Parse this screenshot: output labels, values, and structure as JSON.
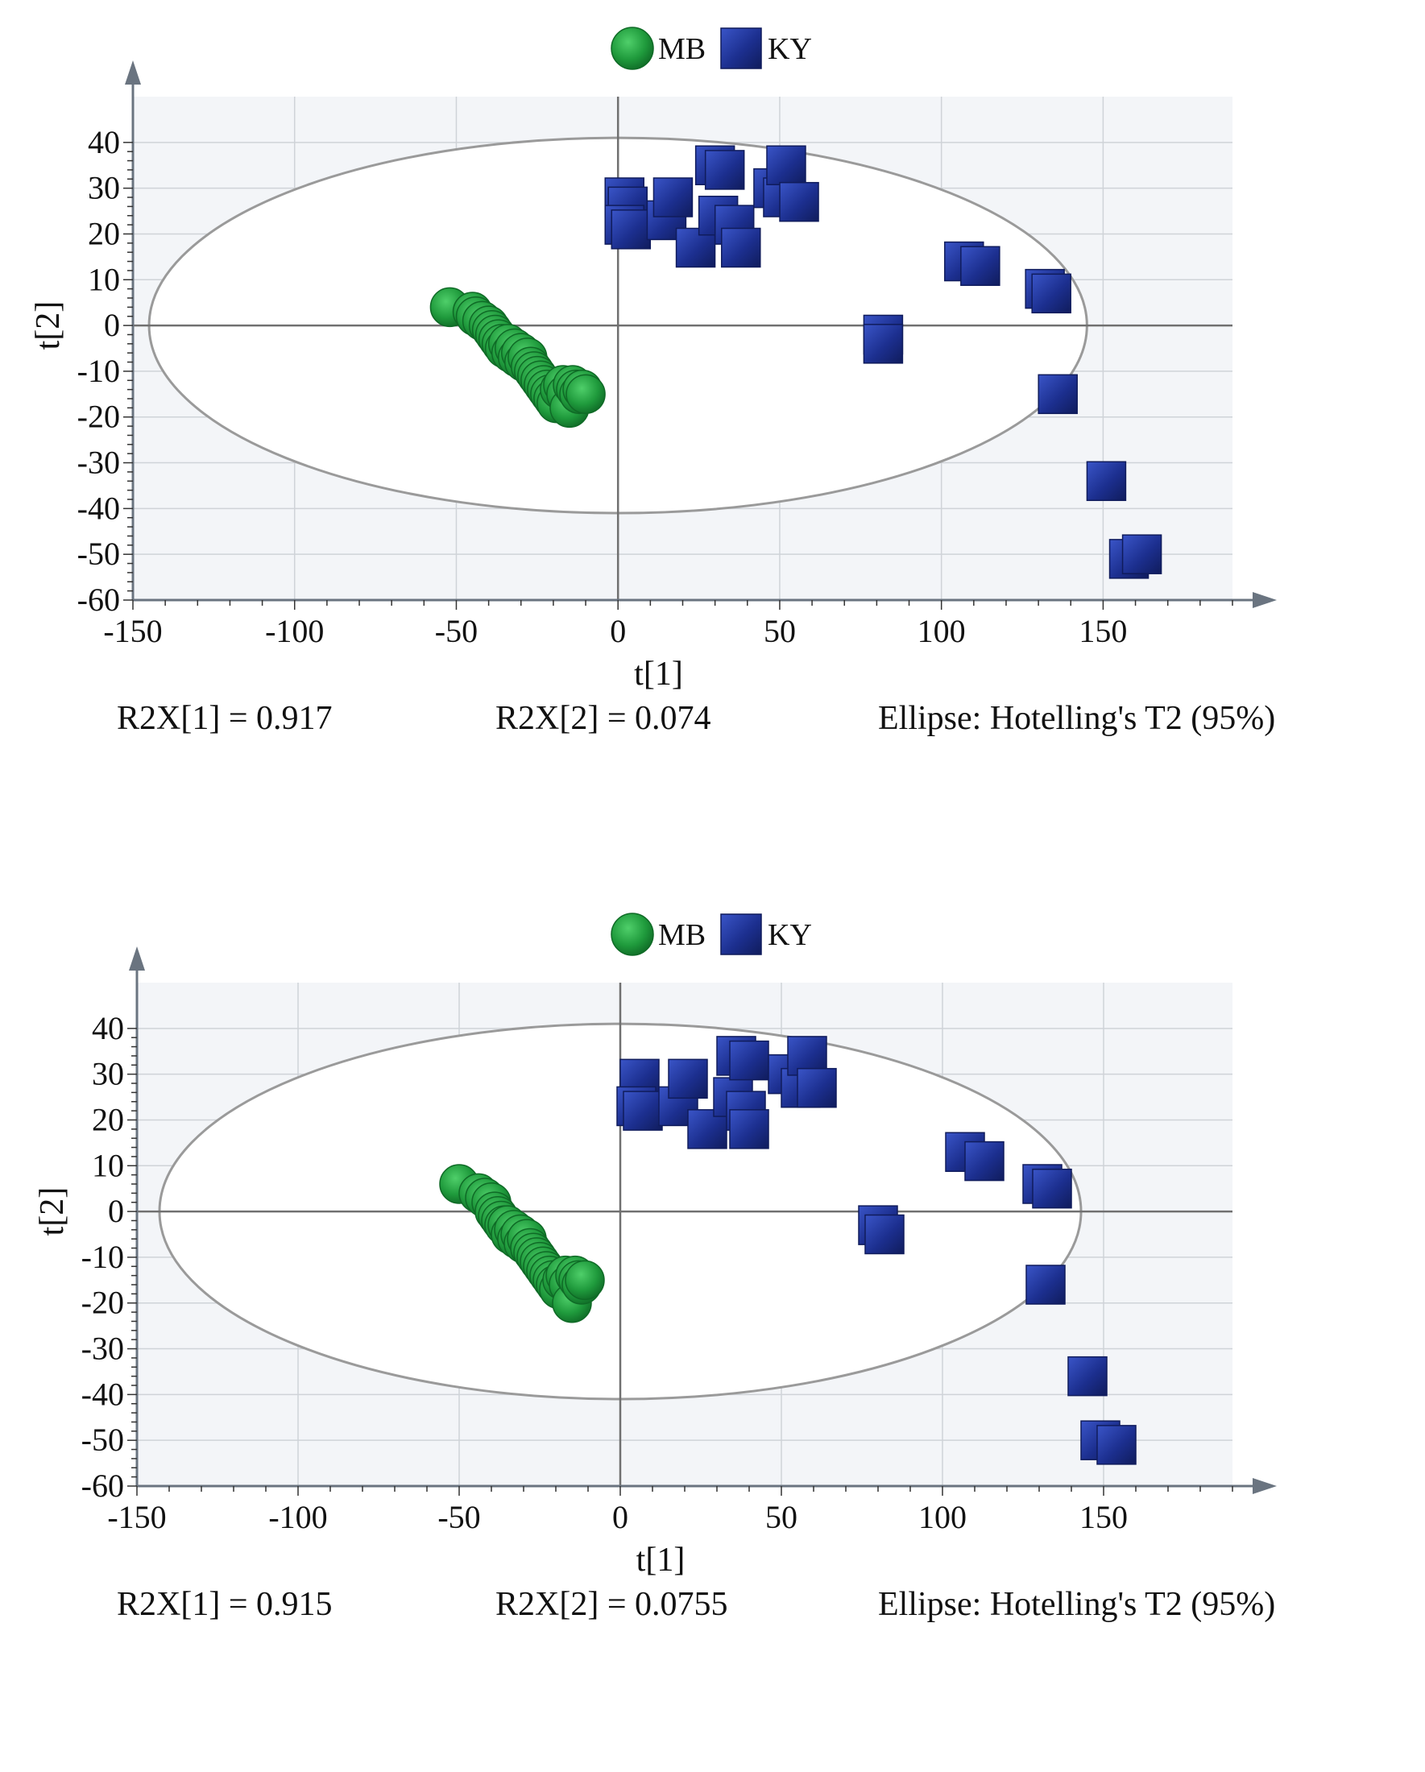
{
  "chart_data": [
    {
      "type": "scatter",
      "legend": [
        {
          "name": "MB",
          "color": "#1f9a3c",
          "marker": "circle"
        },
        {
          "name": "KY",
          "color": "#1c2f8f",
          "marker": "square"
        }
      ],
      "xlabel": "t[1]",
      "ylabel": "t[2]",
      "xlim": [
        -150,
        190
      ],
      "ylim": [
        -60,
        50
      ],
      "xticks": [
        "-150",
        "-100",
        "-50",
        "0",
        "50",
        "100",
        "150"
      ],
      "yticks": [
        "40",
        "30",
        "20",
        "10",
        "0",
        "-10",
        "-20",
        "-30",
        "-40",
        "-50",
        "-60"
      ],
      "grid": true,
      "ellipse": {
        "cx": 0,
        "cy": 0,
        "rx": 145,
        "ry": 41
      },
      "series": [
        {
          "name": "MB",
          "points": [
            [
              -52,
              4
            ],
            [
              -45,
              3
            ],
            [
              -44,
              2
            ],
            [
              -42,
              1
            ],
            [
              -40,
              0
            ],
            [
              -39,
              -1
            ],
            [
              -38,
              -2
            ],
            [
              -37,
              -3
            ],
            [
              -36,
              -4
            ],
            [
              -35,
              -5
            ],
            [
              -34,
              -4
            ],
            [
              -33,
              -6
            ],
            [
              -32,
              -5
            ],
            [
              -31,
              -7
            ],
            [
              -30,
              -6
            ],
            [
              -29,
              -8
            ],
            [
              -28,
              -7
            ],
            [
              -27,
              -9
            ],
            [
              -26,
              -10
            ],
            [
              -25,
              -11
            ],
            [
              -24,
              -12
            ],
            [
              -23,
              -13
            ],
            [
              -22,
              -14
            ],
            [
              -21,
              -15
            ],
            [
              -20,
              -16
            ],
            [
              -19,
              -17
            ],
            [
              -18,
              -14
            ],
            [
              -17,
              -13
            ],
            [
              -16,
              -15
            ],
            [
              -15,
              -18
            ],
            [
              -14,
              -13
            ],
            [
              -13,
              -14
            ],
            [
              -12,
              -15
            ],
            [
              -11,
              -14
            ],
            [
              -10,
              -15
            ]
          ]
        },
        {
          "name": "KY",
          "points": [
            [
              2,
              28
            ],
            [
              3,
              26
            ],
            [
              2,
              22
            ],
            [
              4,
              21
            ],
            [
              15,
              23
            ],
            [
              17,
              28
            ],
            [
              24,
              17
            ],
            [
              30,
              35
            ],
            [
              33,
              34
            ],
            [
              31,
              24
            ],
            [
              36,
              22
            ],
            [
              38,
              17
            ],
            [
              48,
              30
            ],
            [
              51,
              28
            ],
            [
              52,
              35
            ],
            [
              56,
              27
            ],
            [
              107,
              14
            ],
            [
              112,
              13
            ],
            [
              132,
              8
            ],
            [
              134,
              7
            ],
            [
              82,
              -2
            ],
            [
              82,
              -4
            ],
            [
              136,
              -15
            ],
            [
              151,
              -34
            ],
            [
              158,
              -51
            ],
            [
              162,
              -50
            ]
          ]
        }
      ],
      "footer": {
        "r2x1": "R2X[1] = 0.917",
        "r2x2": "R2X[2] = 0.074",
        "ellipse": "Ellipse: Hotelling's T2 (95%)"
      }
    },
    {
      "type": "scatter",
      "legend": [
        {
          "name": "MB",
          "color": "#1f9a3c",
          "marker": "circle"
        },
        {
          "name": "KY",
          "color": "#1c2f8f",
          "marker": "square"
        }
      ],
      "xlabel": "t[1]",
      "ylabel": "t[2]",
      "xlim": [
        -150,
        190
      ],
      "ylim": [
        -60,
        50
      ],
      "xticks": [
        "-150",
        "-100",
        "-50",
        "0",
        "50",
        "100",
        "150"
      ],
      "yticks": [
        "40",
        "30",
        "20",
        "10",
        "0",
        "-10",
        "-20",
        "-30",
        "-40",
        "-50",
        "-60"
      ],
      "grid": true,
      "ellipse": {
        "cx": 0,
        "cy": 0,
        "rx": 143,
        "ry": 41
      },
      "series": [
        {
          "name": "MB",
          "points": [
            [
              -50,
              6
            ],
            [
              -44,
              4
            ],
            [
              -42,
              3
            ],
            [
              -40,
              2
            ],
            [
              -39,
              0
            ],
            [
              -38,
              -1
            ],
            [
              -37,
              -2
            ],
            [
              -36,
              -3
            ],
            [
              -35,
              -3
            ],
            [
              -34,
              -5
            ],
            [
              -33,
              -4
            ],
            [
              -32,
              -6
            ],
            [
              -31,
              -5
            ],
            [
              -30,
              -7
            ],
            [
              -29,
              -6
            ],
            [
              -28,
              -8
            ],
            [
              -27,
              -9
            ],
            [
              -26,
              -10
            ],
            [
              -25,
              -11
            ],
            [
              -24,
              -12
            ],
            [
              -23,
              -13
            ],
            [
              -22,
              -14
            ],
            [
              -21,
              -15
            ],
            [
              -20,
              -16
            ],
            [
              -19,
              -17
            ],
            [
              -18,
              -15
            ],
            [
              -17,
              -14
            ],
            [
              -16,
              -16
            ],
            [
              -15,
              -20
            ],
            [
              -14,
              -14
            ],
            [
              -13,
              -15
            ],
            [
              -12,
              -16
            ],
            [
              -11,
              -15
            ]
          ]
        },
        {
          "name": "KY",
          "points": [
            [
              6,
              29
            ],
            [
              5,
              23
            ],
            [
              7,
              22
            ],
            [
              18,
              23
            ],
            [
              21,
              29
            ],
            [
              27,
              18
            ],
            [
              35,
              25
            ],
            [
              36,
              34
            ],
            [
              40,
              33
            ],
            [
              39,
              22
            ],
            [
              40,
              18
            ],
            [
              52,
              30
            ],
            [
              56,
              27
            ],
            [
              58,
              34
            ],
            [
              61,
              27
            ],
            [
              107,
              13
            ],
            [
              113,
              11
            ],
            [
              131,
              6
            ],
            [
              134,
              5
            ],
            [
              80,
              -3
            ],
            [
              82,
              -5
            ],
            [
              132,
              -16
            ],
            [
              145,
              -36
            ],
            [
              149,
              -50
            ],
            [
              154,
              -51
            ]
          ]
        }
      ],
      "footer": {
        "r2x1": "R2X[1] = 0.915",
        "r2x2": "R2X[2] = 0.0755",
        "ellipse": "Ellipse: Hotelling's T2 (95%)"
      }
    }
  ]
}
